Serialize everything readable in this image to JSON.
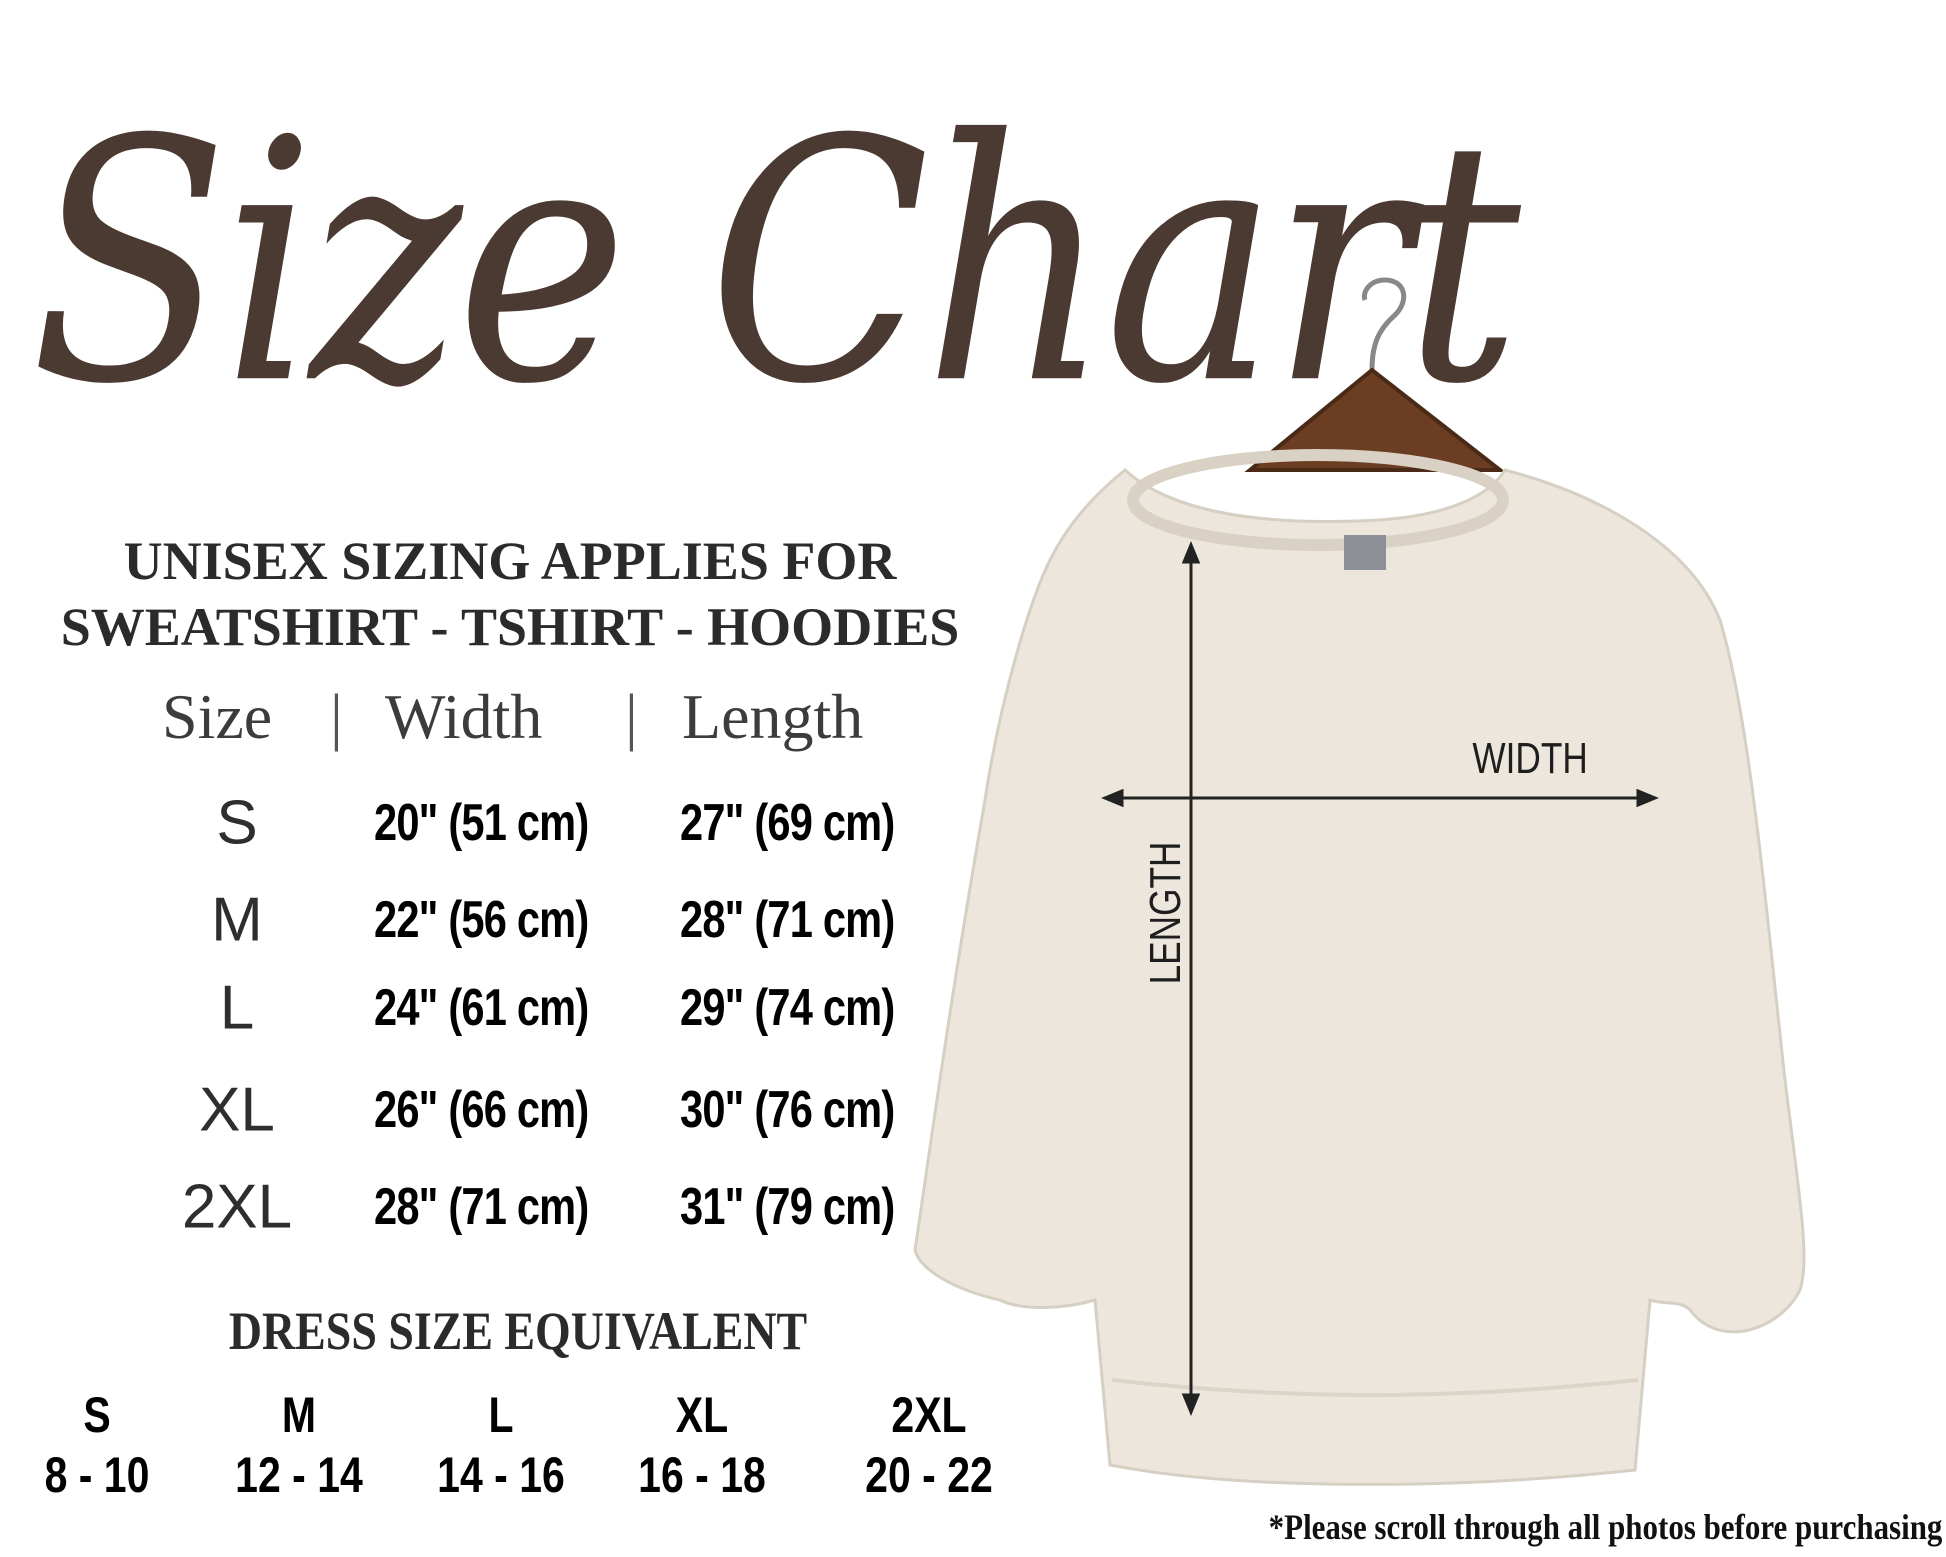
{
  "title": "Size Chart",
  "heading": {
    "line1": "UNISEX SIZING APPLIES FOR",
    "line2": "SWEATSHIRT - TSHIRT - HOODIES"
  },
  "table": {
    "headers": [
      "Size",
      "Width",
      "Length"
    ],
    "separator": "|",
    "rows": [
      {
        "size": "S",
        "width": "20\" (51 cm)",
        "length": "27\" (69 cm)"
      },
      {
        "size": "M",
        "width": "22\" (56 cm)",
        "length": "28\" (71 cm)"
      },
      {
        "size": "L",
        "width": "24\" (61 cm)",
        "length": "29\" (74 cm)"
      },
      {
        "size": "XL",
        "width": "26\" (66 cm)",
        "length": "30\" (76 cm)"
      },
      {
        "size": "2XL",
        "width": "28\" (71 cm)",
        "length": "31\" (79 cm)"
      }
    ]
  },
  "dress": {
    "title": "DRESS SIZE EQUIVALENT",
    "items": [
      {
        "size": "S",
        "range": "8 - 10"
      },
      {
        "size": "M",
        "range": "12 - 14"
      },
      {
        "size": "L",
        "range": "14 - 16"
      },
      {
        "size": "XL",
        "range": "16 - 18"
      },
      {
        "size": "2XL",
        "range": "20 - 22"
      }
    ]
  },
  "garment": {
    "width_label": "WIDTH",
    "length_label": "LENGTH",
    "color": "#ece6dc"
  },
  "note": "*Please scroll through all photos before purchasing",
  "colors": {
    "title": "#4a3a32",
    "text": "#000000"
  }
}
